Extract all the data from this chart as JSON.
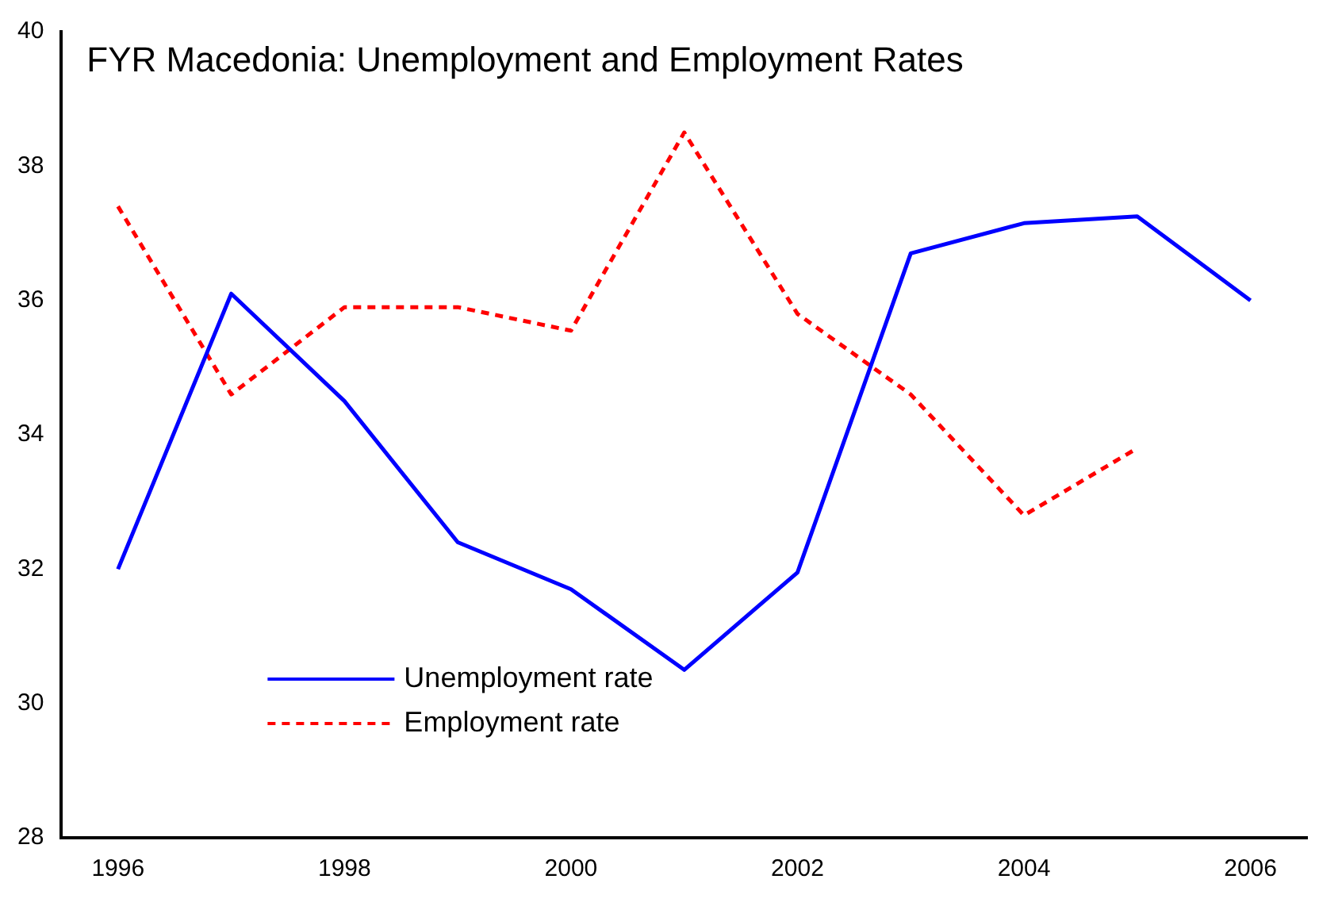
{
  "chart_data": {
    "type": "line",
    "title": "FYR Macedonia: Unemployment and Employment Rates",
    "categories": [
      "1996",
      null,
      "1998",
      null,
      "2000",
      null,
      "2002",
      null,
      "2004",
      null,
      "2006"
    ],
    "series": [
      {
        "name": "Unemployment rate",
        "color": "#0000ff",
        "line_style": "solid",
        "values": [
          32.0,
          36.1,
          34.5,
          32.4,
          31.7,
          30.5,
          31.95,
          36.7,
          37.15,
          37.25,
          36.0
        ]
      },
      {
        "name": "Employment rate",
        "color": "#ff0000",
        "line_style": "dashed",
        "values": [
          37.4,
          34.6,
          35.9,
          35.9,
          35.55,
          38.5,
          35.8,
          34.6,
          32.8,
          33.8,
          null
        ]
      }
    ],
    "ylim": [
      28,
      40
    ],
    "yticks": [
      28,
      30,
      32,
      34,
      36,
      38,
      40
    ],
    "grid": false,
    "legend": "bottom left",
    "marker": "none"
  }
}
